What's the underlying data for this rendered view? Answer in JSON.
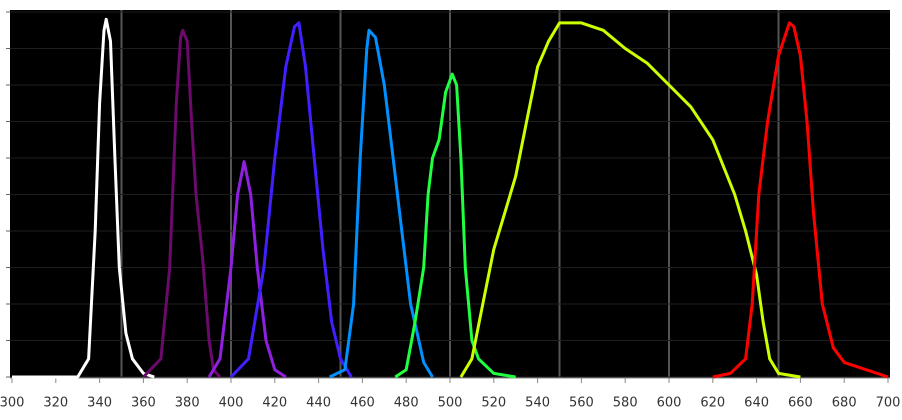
{
  "chart_data": {
    "type": "line",
    "xlim": [
      300,
      700
    ],
    "xticks": [
      300,
      320,
      340,
      360,
      380,
      400,
      420,
      440,
      460,
      480,
      500,
      520,
      540,
      560,
      580,
      600,
      620,
      640,
      660,
      680,
      700
    ],
    "xgrid": [
      350,
      400,
      450,
      500,
      550,
      600,
      650
    ],
    "ylim": [
      0,
      1
    ],
    "yticks": [
      0,
      0.1,
      0.2,
      0.3,
      0.4,
      0.5,
      0.6,
      0.7,
      0.8,
      0.9,
      1
    ],
    "series": [
      {
        "color": "#ffffff",
        "x": [
          300,
          330,
          335,
          338,
          340,
          342,
          343,
          345,
          347,
          349,
          352,
          355,
          360,
          365
        ],
        "values": [
          0,
          0,
          0.05,
          0.4,
          0.75,
          0.95,
          0.98,
          0.92,
          0.6,
          0.3,
          0.12,
          0.05,
          0.01,
          0
        ]
      },
      {
        "color": "#6a0a6a",
        "x": [
          360,
          368,
          372,
          375,
          377,
          378,
          380,
          382,
          384,
          387,
          390,
          392,
          395
        ],
        "values": [
          0,
          0.05,
          0.3,
          0.75,
          0.93,
          0.95,
          0.92,
          0.7,
          0.5,
          0.33,
          0.1,
          0.02,
          0
        ]
      },
      {
        "color": "#9020e0",
        "x": [
          390,
          395,
          400,
          403,
          406,
          409,
          412,
          416,
          420,
          425
        ],
        "values": [
          0,
          0.05,
          0.3,
          0.5,
          0.59,
          0.5,
          0.3,
          0.1,
          0.02,
          0
        ]
      },
      {
        "color": "#4020ff",
        "x": [
          400,
          408,
          415,
          420,
          425,
          429,
          431,
          434,
          438,
          442,
          446,
          450,
          455
        ],
        "values": [
          0,
          0.05,
          0.3,
          0.6,
          0.85,
          0.96,
          0.97,
          0.85,
          0.6,
          0.35,
          0.15,
          0.05,
          0
        ]
      },
      {
        "color": "#0090ff",
        "x": [
          445,
          452,
          456,
          459,
          462,
          463,
          466,
          470,
          474,
          478,
          482,
          485,
          488,
          492
        ],
        "values": [
          0,
          0.02,
          0.2,
          0.6,
          0.9,
          0.95,
          0.93,
          0.8,
          0.6,
          0.4,
          0.2,
          0.12,
          0.04,
          0
        ]
      },
      {
        "color": "#20ff40",
        "x": [
          475,
          480,
          484,
          488,
          490,
          492,
          495,
          498,
          501,
          503,
          505,
          507,
          510,
          513,
          520,
          530
        ],
        "values": [
          0,
          0.02,
          0.15,
          0.3,
          0.5,
          0.6,
          0.65,
          0.78,
          0.83,
          0.8,
          0.6,
          0.3,
          0.1,
          0.05,
          0.01,
          0
        ]
      },
      {
        "color": "#ccff00",
        "x": [
          505,
          510,
          515,
          520,
          525,
          530,
          535,
          540,
          545,
          550,
          560,
          570,
          580,
          590,
          600,
          610,
          620,
          630,
          635,
          640,
          643,
          646,
          650,
          660
        ],
        "values": [
          0,
          0.05,
          0.2,
          0.35,
          0.45,
          0.55,
          0.7,
          0.85,
          0.92,
          0.97,
          0.97,
          0.95,
          0.9,
          0.86,
          0.8,
          0.74,
          0.65,
          0.5,
          0.4,
          0.28,
          0.15,
          0.05,
          0.01,
          0
        ]
      },
      {
        "color": "#ff0000",
        "x": [
          620,
          628,
          635,
          638,
          641,
          645,
          650,
          655,
          657,
          660,
          663,
          666,
          670,
          675,
          680,
          690,
          700
        ],
        "values": [
          0,
          0.01,
          0.05,
          0.2,
          0.5,
          0.7,
          0.88,
          0.97,
          0.96,
          0.88,
          0.7,
          0.45,
          0.2,
          0.08,
          0.04,
          0.02,
          0
        ]
      }
    ]
  }
}
